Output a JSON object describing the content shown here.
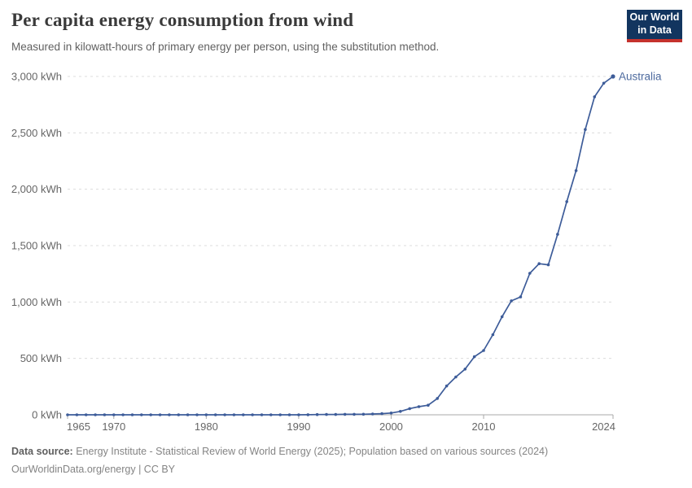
{
  "header": {
    "title": "Per capita energy consumption from wind",
    "subtitle": "Measured in kilowatt-hours of primary energy per person, using the substitution method.",
    "logo": {
      "line1": "Our World",
      "line2": "in Data"
    }
  },
  "chart_data": {
    "type": "line",
    "title": "Per capita energy consumption from wind",
    "xlabel": "",
    "ylabel": "kWh",
    "xlim": [
      1965,
      2024
    ],
    "ylim": [
      0,
      3000
    ],
    "x_ticks": [
      1965,
      1970,
      1980,
      1990,
      2000,
      2010,
      2024
    ],
    "y_ticks": [
      0,
      500,
      1000,
      1500,
      2000,
      2500,
      3000
    ],
    "y_tick_suffix": " kWh",
    "grid": "dashed-horizontal",
    "legend_position": "end-of-line-label",
    "series": [
      {
        "name": "Australia",
        "x": [
          1965,
          1966,
          1967,
          1968,
          1969,
          1970,
          1971,
          1972,
          1973,
          1974,
          1975,
          1976,
          1977,
          1978,
          1979,
          1980,
          1981,
          1982,
          1983,
          1984,
          1985,
          1986,
          1987,
          1988,
          1989,
          1990,
          1991,
          1992,
          1993,
          1994,
          1995,
          1996,
          1997,
          1998,
          1999,
          2000,
          2001,
          2002,
          2003,
          2004,
          2005,
          2006,
          2007,
          2008,
          2009,
          2010,
          2011,
          2012,
          2013,
          2014,
          2015,
          2016,
          2017,
          2018,
          2019,
          2020,
          2021,
          2022,
          2023,
          2024
        ],
        "values": [
          0,
          0,
          0,
          0,
          0,
          0,
          0,
          0,
          0,
          0,
          0,
          0,
          0,
          0,
          0,
          0,
          0,
          0,
          0,
          0,
          0,
          0,
          0,
          0,
          0,
          0,
          1,
          2,
          3,
          3,
          4,
          4,
          5,
          7,
          10,
          16,
          30,
          55,
          72,
          85,
          145,
          255,
          335,
          405,
          515,
          570,
          710,
          870,
          1010,
          1045,
          1255,
          1340,
          1330,
          1600,
          1890,
          2165,
          2530,
          2820,
          2940,
          3000
        ]
      }
    ]
  },
  "footer": {
    "source_label": "Data source:",
    "source_text": "Energy Institute - Statistical Review of World Energy (2025); Population based on various sources (2024)",
    "link_line": "OurWorldinData.org/energy | CC BY"
  },
  "colors": {
    "line": "#3d5c99",
    "series_label": "#4d6a9e",
    "gridline": "#dcdcdc",
    "axis_line": "#a8a8a8",
    "tick_text": "#666666",
    "logo_bg": "#12355f",
    "logo_red": "#c5322d"
  }
}
